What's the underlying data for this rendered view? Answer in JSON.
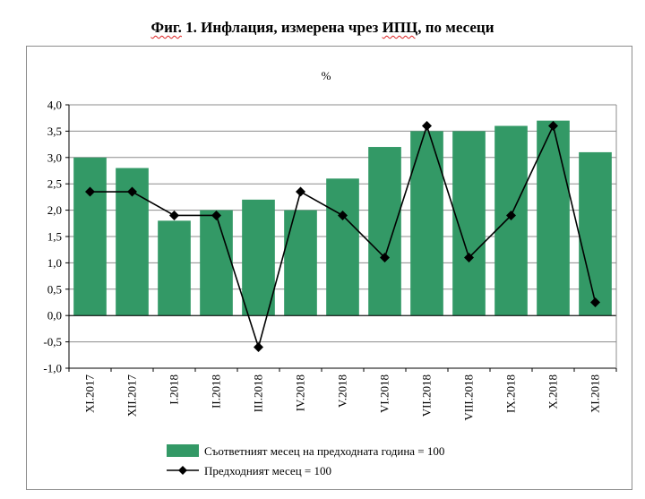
{
  "title": {
    "prefix": "Фиг.",
    "rest": " 1. Инфлация, измерена чрез ",
    "acronym": "ИПЦ",
    "suffix": ", по месеци"
  },
  "chart_data": {
    "type": "bar",
    "ylabel": "%",
    "ylim": [
      -1.0,
      4.0
    ],
    "ytick_labels": [
      "4,0",
      "3,5",
      "3,0",
      "2,5",
      "2,0",
      "1,5",
      "1,0",
      "0,5",
      "0,0",
      "-0,5",
      "-1,0"
    ],
    "ytick_values": [
      4.0,
      3.5,
      3.0,
      2.5,
      2.0,
      1.5,
      1.0,
      0.5,
      0.0,
      -0.5,
      -1.0
    ],
    "categories": [
      "XI.2017",
      "XII.2017",
      "I.2018",
      "II.2018",
      "III.2018",
      "IV.2018",
      "V.2018",
      "VI.2018",
      "VII.2018",
      "VIII.2018",
      "IX.2018",
      "X.2018",
      "XI.2018"
    ],
    "series": [
      {
        "name": "Съответният месец на предходната година = 100",
        "kind": "bar",
        "color": "#339966",
        "values": [
          3.0,
          2.8,
          1.8,
          2.0,
          2.2,
          2.0,
          2.6,
          3.2,
          3.5,
          3.5,
          3.6,
          3.7,
          3.1
        ]
      },
      {
        "name": "Предходният месец = 100",
        "kind": "line",
        "color": "#000000",
        "values": [
          2.35,
          2.35,
          1.9,
          1.9,
          -0.6,
          2.35,
          1.9,
          1.1,
          3.6,
          1.1,
          1.9,
          3.6,
          0.25
        ]
      }
    ]
  }
}
